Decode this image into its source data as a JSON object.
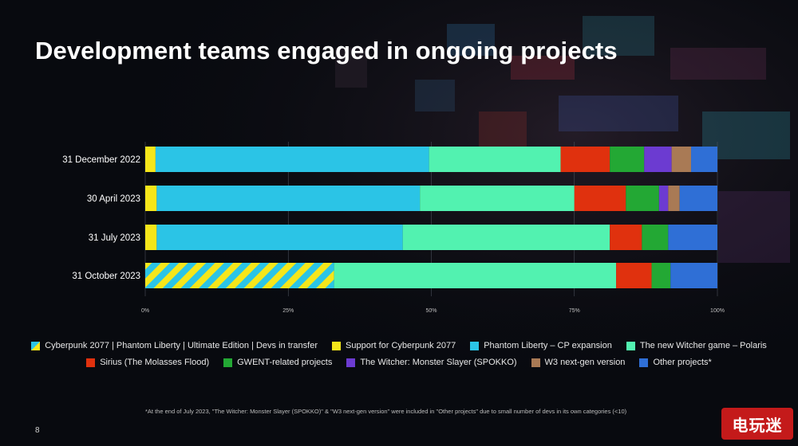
{
  "slide": {
    "title": "Development teams engaged in ongoing projects",
    "page_number": "8",
    "footnote": "*At the end of July 2023, \"The Witcher: Monster Slayer (SPOKKO)\" & \"W3 next-gen version\" were included in \"Other projects\" due to small number of devs in its own categories (<10)",
    "watermark": "电玩迷"
  },
  "colors": {
    "yellow": "#f5e61a",
    "blue": "#2bc4e6",
    "mint": "#52f2b0",
    "red": "#e0310e",
    "green": "#23a834",
    "purple": "#6c3bd1",
    "brown": "#a97a55",
    "navy": "#2f6fd6"
  },
  "chart_data": {
    "type": "bar",
    "orientation": "horizontal",
    "stacked": true,
    "percent": true,
    "title": "Development teams engaged in ongoing projects",
    "categories": [
      "31 December 2022",
      "30 April 2023",
      "31 July 2023",
      "31 October 2023"
    ],
    "xlim": [
      0,
      100
    ],
    "x_ticks": [
      "0%",
      "25%",
      "50%",
      "75%",
      "100%"
    ],
    "legend_position": "bottom",
    "series": [
      {
        "name": "Cyberpunk 2077 | Phantom Liberty | Ultimate Edition | Devs in transfer",
        "color": "hatch",
        "values": [
          0,
          0,
          0,
          33
        ]
      },
      {
        "name": "Support for Cyberpunk 2077",
        "color": "#f5e61a",
        "values": [
          1.8,
          2,
          2,
          0
        ]
      },
      {
        "name": "Phantom Liberty – CP expansion",
        "color": "#2bc4e6",
        "values": [
          47.8,
          46,
          43,
          0
        ]
      },
      {
        "name": "The new Witcher game – Polaris",
        "color": "#52f2b0",
        "values": [
          23,
          27,
          36.2,
          49.3
        ]
      },
      {
        "name": "Sirius (The Molasses Flood)",
        "color": "#e0310e",
        "values": [
          8.6,
          9,
          5.6,
          6.2
        ]
      },
      {
        "name": "GWENT-related projects",
        "color": "#23a834",
        "values": [
          6,
          5.8,
          4.6,
          3.3
        ]
      },
      {
        "name": "The Witcher: Monster Slayer (SPOKKO)",
        "color": "#6c3bd1",
        "values": [
          4.8,
          1.6,
          0,
          0
        ]
      },
      {
        "name": "W3 next-gen version",
        "color": "#a97a55",
        "values": [
          3.4,
          2,
          0,
          0
        ]
      },
      {
        "name": "Other projects*",
        "color": "#2f6fd6",
        "values": [
          4.6,
          6.6,
          8.6,
          8.2
        ]
      }
    ]
  },
  "legend": {
    "rows": [
      [
        {
          "label": "Cyberpunk 2077 | Phantom Liberty | Ultimate Edition | Devs in transfer",
          "swatch": "hatch"
        },
        {
          "label": "Support for Cyberpunk 2077",
          "swatch": "#f5e61a"
        },
        {
          "label": "Phantom Liberty – CP expansion",
          "swatch": "#2bc4e6"
        },
        {
          "label": "The new Witcher game – Polaris",
          "swatch": "#52f2b0"
        }
      ],
      [
        {
          "label": "Sirius (The Molasses Flood)",
          "swatch": "#e0310e"
        },
        {
          "label": "GWENT-related projects",
          "swatch": "#23a834"
        },
        {
          "label": "The Witcher: Monster Slayer (SPOKKO)",
          "swatch": "#6c3bd1"
        },
        {
          "label": "W3 next-gen version",
          "swatch": "#a97a55"
        },
        {
          "label": "Other projects*",
          "swatch": "#2f6fd6"
        }
      ]
    ]
  }
}
